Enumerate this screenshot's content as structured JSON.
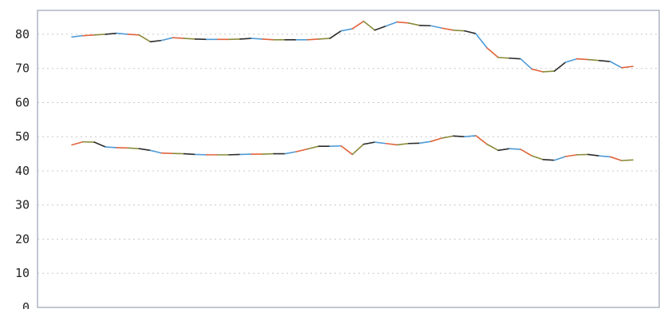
{
  "chart_data": {
    "type": "line",
    "title": "",
    "xlabel": "",
    "ylabel": "",
    "ylim": [
      0,
      87
    ],
    "y_ticks": [
      "0",
      "10",
      "20",
      "30",
      "40",
      "50",
      "60",
      "70",
      "80"
    ],
    "y_tick_values": [
      0,
      10,
      20,
      30,
      40,
      50,
      60,
      70,
      80
    ],
    "grid": "horizontal dotted",
    "legend": "none",
    "line_colors": [
      "#4d9ad6",
      "#e0633a",
      "#8a8a3a",
      "#2b2b2b"
    ],
    "x": [
      0,
      2,
      4,
      6,
      8,
      10,
      12,
      14,
      16,
      18,
      20,
      22,
      24,
      26,
      28,
      30,
      32,
      34,
      36,
      38,
      40,
      42,
      44,
      46,
      48,
      50,
      52,
      54,
      56,
      58,
      60,
      62,
      64,
      66,
      68,
      70,
      72,
      74,
      76,
      78,
      80,
      82,
      84,
      86,
      88,
      90,
      92,
      94,
      96,
      98,
      100
    ],
    "series": [
      {
        "values": [
          79.2,
          79.6,
          79.8,
          80.0,
          80.3,
          80.0,
          79.8,
          77.8,
          78.2,
          79.0,
          78.8,
          78.6,
          78.5,
          78.5,
          78.5,
          78.6,
          78.8,
          78.6,
          78.4,
          78.4,
          78.4,
          78.4,
          78.6,
          78.8,
          81.0,
          81.6,
          83.8,
          81.2,
          82.4,
          83.6,
          83.3,
          82.6,
          82.5,
          81.8,
          81.2,
          81.0,
          80.2,
          76.0,
          73.2,
          73.0,
          72.8,
          69.8,
          69.0,
          69.2,
          71.8,
          72.8,
          72.6,
          72.3,
          72.0,
          70.2,
          70.6
        ]
      },
      {
        "values": [
          47.6,
          48.5,
          48.4,
          47.0,
          46.8,
          46.7,
          46.5,
          46.0,
          45.2,
          45.1,
          45.0,
          44.8,
          44.7,
          44.7,
          44.7,
          44.8,
          44.9,
          44.9,
          45.0,
          45.0,
          45.6,
          46.4,
          47.2,
          47.2,
          47.3,
          44.8,
          47.8,
          48.4,
          48.0,
          47.6,
          48.0,
          48.1,
          48.6,
          49.6,
          50.2,
          50.0,
          50.3,
          47.8,
          46.0,
          46.5,
          46.3,
          44.4,
          43.3,
          43.1,
          44.2,
          44.7,
          44.8,
          44.4,
          44.1,
          43.0,
          43.2
        ]
      }
    ]
  }
}
